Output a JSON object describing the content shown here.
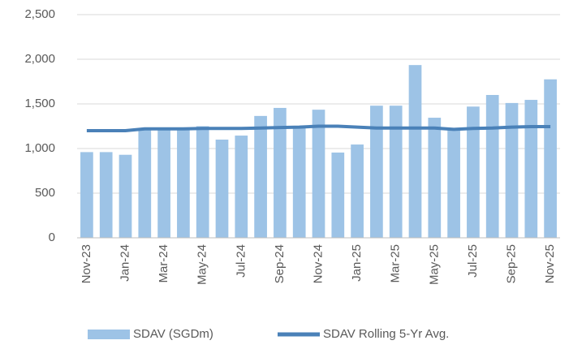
{
  "chart_data": {
    "type": "bar_line",
    "categories": [
      "Nov-23",
      null,
      "Jan-24",
      null,
      "Mar-24",
      null,
      "May-24",
      null,
      "Jul-24",
      null,
      "Sep-24",
      null,
      "Nov-24",
      null,
      "Jan-25",
      null,
      "Mar-25",
      null,
      "May-25",
      null,
      "Jul-25",
      null,
      "Sep-25",
      null,
      "Nov-25"
    ],
    "series": [
      {
        "name": "SDAV (SGDm)",
        "type": "bar",
        "color": "#9dc3e6",
        "values": [
          960,
          960,
          930,
          1220,
          1220,
          1230,
          1250,
          1100,
          1145,
          1365,
          1455,
          1240,
          1435,
          955,
          1045,
          1480,
          1480,
          1935,
          1345,
          1210,
          1470,
          1600,
          1510,
          1545,
          1775
        ]
      },
      {
        "name": "SDAV Rolling 5-Yr Avg.",
        "type": "line",
        "color": "#4a81b8",
        "values": [
          1200,
          1200,
          1200,
          1220,
          1220,
          1220,
          1225,
          1225,
          1225,
          1230,
          1235,
          1240,
          1250,
          1250,
          1240,
          1230,
          1230,
          1230,
          1230,
          1215,
          1225,
          1230,
          1240,
          1245,
          1245
        ]
      }
    ],
    "ylim": [
      0,
      2500
    ],
    "yticks": [
      0,
      500,
      {
        "value": 1000,
        "label": "1,000"
      },
      {
        "value": 1500,
        "label": "1,500"
      },
      {
        "value": 2000,
        "label": "2,000"
      },
      {
        "value": 2500,
        "label": "2,500"
      }
    ],
    "grid": true,
    "legend": "bottom"
  }
}
